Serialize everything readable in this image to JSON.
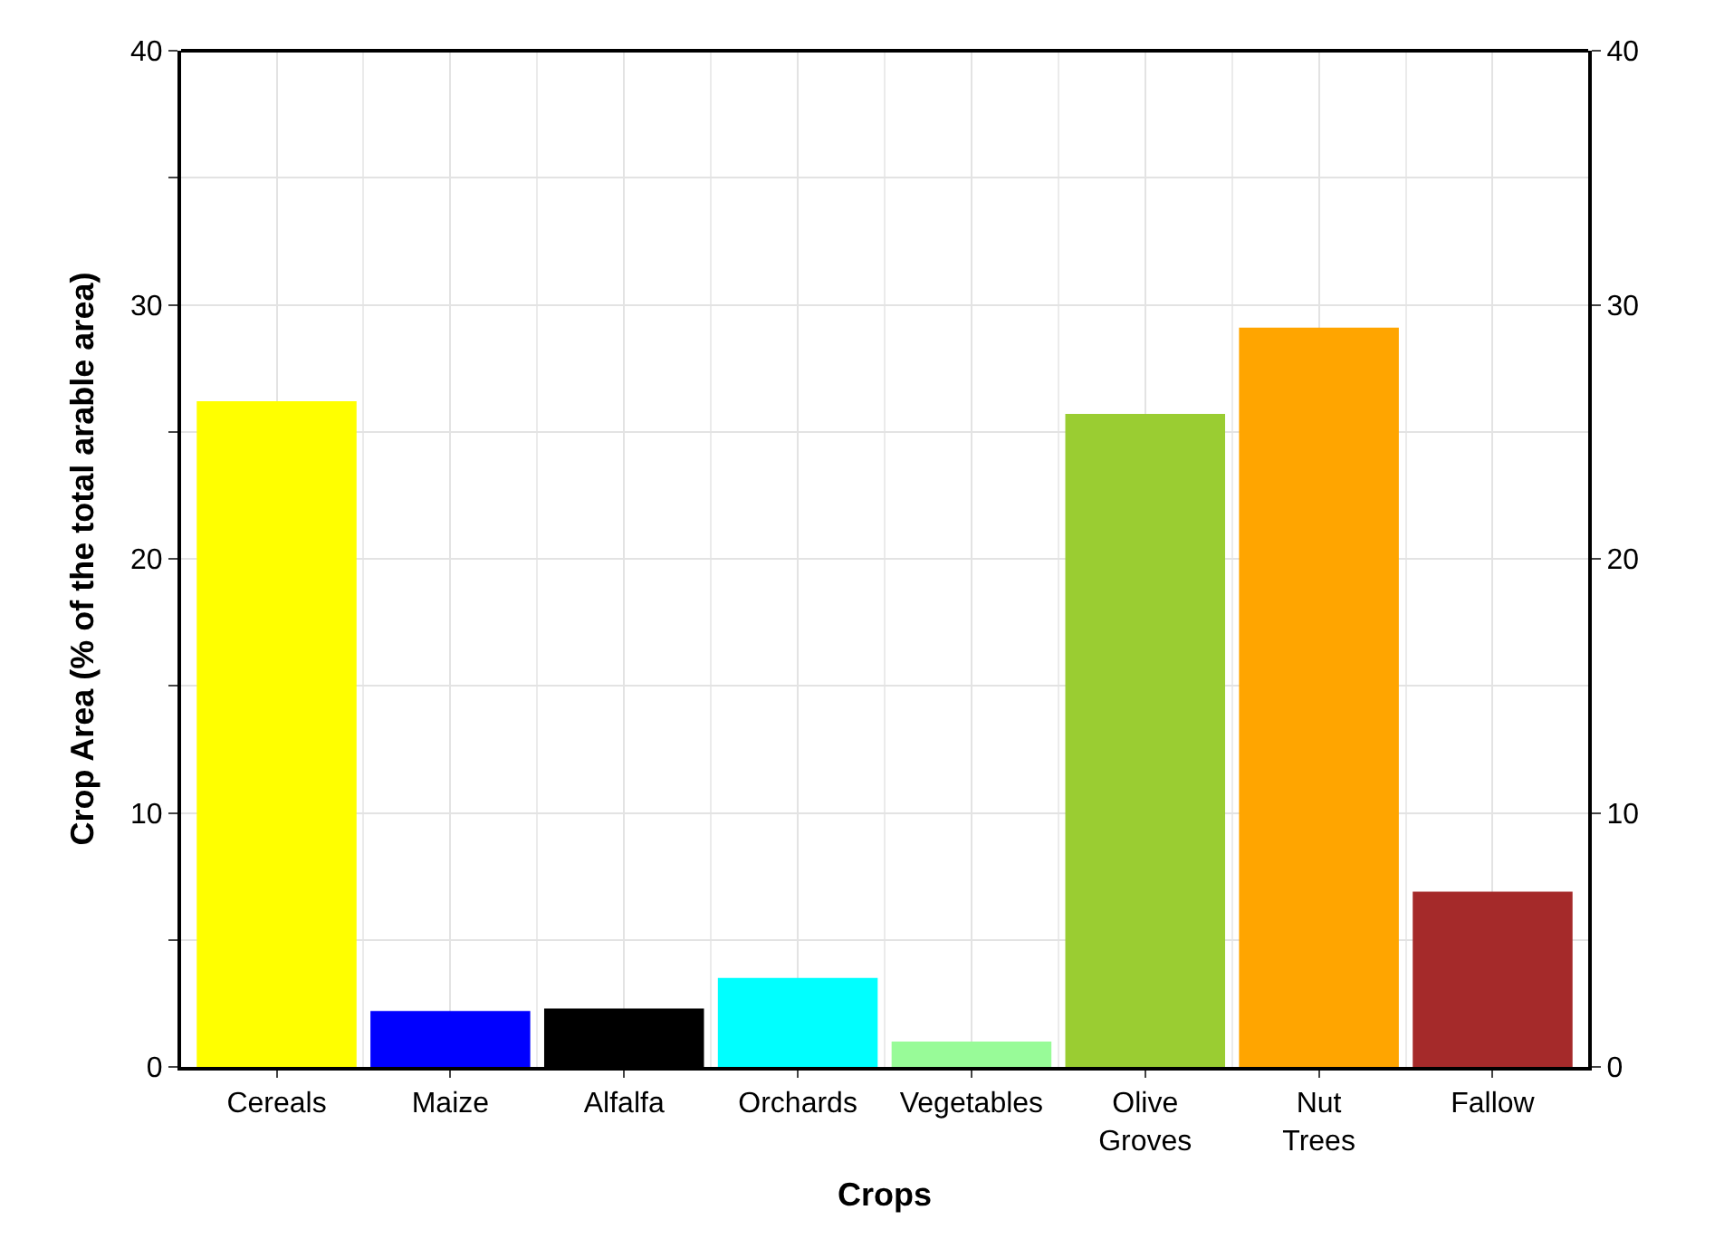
{
  "chart_data": {
    "type": "bar",
    "xlabel": "Crops",
    "ylabel": "Crop Area (% of the total arable area)",
    "categories": [
      "Cereals",
      "Maize",
      "Alfalfa",
      "Orchards",
      "Vegetables",
      "Olive Groves",
      "Nut Trees",
      "Fallow"
    ],
    "values": [
      26.2,
      2.2,
      2.3,
      3.5,
      1.0,
      25.7,
      29.1,
      6.9
    ],
    "colors": [
      "#ffff00",
      "#0000ff",
      "#000000",
      "#00ffff",
      "#98fb98",
      "#9acd32",
      "#ffa500",
      "#a52a2a"
    ],
    "ylim": [
      0,
      40
    ],
    "yticks": [
      0,
      {
        "value": 5,
        "label": null
      },
      10,
      {
        "value": 15,
        "label": null
      },
      20,
      {
        "value": 25,
        "label": null
      },
      30,
      {
        "value": 35,
        "label": null
      },
      40
    ],
    "y2lim": [
      0,
      40
    ],
    "y2ticks": [
      0,
      10,
      20,
      30,
      40
    ],
    "grid": true
  }
}
